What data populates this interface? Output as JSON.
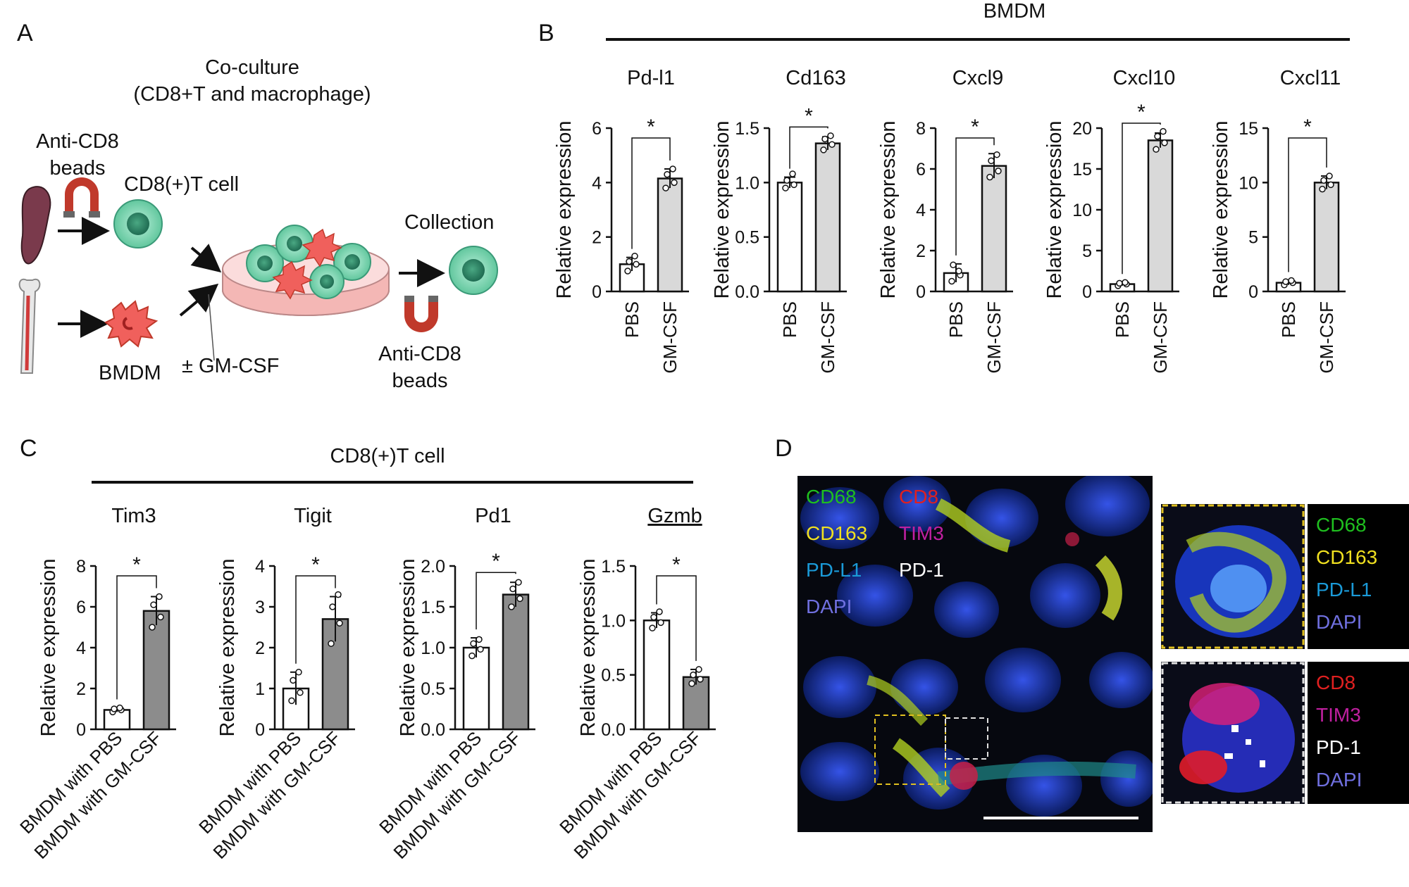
{
  "panels": {
    "a": "A",
    "b": "B",
    "c": "C",
    "d": "D"
  },
  "schematic": {
    "coculture_line1": "Co-culture",
    "coculture_line2": "(CD8+T and macrophage)",
    "anti_cd8_beads_top": "Anti-CD8\nbeads",
    "cd8_cell": "CD8(+)T cell",
    "bmdm": "BMDM",
    "gm_csf": "± GM-CSF",
    "collection": "Collection",
    "anti_cd8_beads_bottom": "Anti-CD8\nbeads",
    "colors": {
      "t_cell": "#7fd8b4",
      "macrophage": "#f0605c",
      "dish": "#f4b7b5",
      "spleen": "#7a3a4c",
      "magnet": "#c0392b"
    }
  },
  "b_group_title": "BMDM",
  "c_group_title": "CD8(+)T cell",
  "chart_data": [
    {
      "type": "bar",
      "title": "Pd-l1",
      "ylabel": "Relative expression",
      "categories": [
        "PBS",
        "GM-CSF"
      ],
      "ylim": [
        0,
        6
      ],
      "yticks": [
        "0",
        "2",
        "4",
        "6"
      ],
      "values": [
        1.0,
        4.15
      ],
      "errors": [
        0.25,
        0.35
      ],
      "points": [
        [
          0.75,
          1.0,
          1.1,
          1.3
        ],
        [
          3.8,
          4.0,
          4.3,
          4.5
        ]
      ],
      "fills": [
        "#ffffff",
        "#d9d9d9"
      ],
      "significance": "*"
    },
    {
      "type": "bar",
      "title": "Cd163",
      "ylabel": "Relative expression",
      "categories": [
        "PBS",
        "GM-CSF"
      ],
      "ylim": [
        0,
        1.5
      ],
      "yticks": [
        "0.0",
        "0.5",
        "1.0",
        "1.5"
      ],
      "values": [
        1.0,
        1.36
      ],
      "errors": [
        0.05,
        0.06
      ],
      "points": [
        [
          0.95,
          0.98,
          1.02,
          1.08
        ],
        [
          1.3,
          1.35,
          1.4,
          1.43
        ]
      ],
      "fills": [
        "#ffffff",
        "#d9d9d9"
      ],
      "significance": "*"
    },
    {
      "type": "bar",
      "title": "Cxcl9",
      "ylabel": "Relative expression",
      "categories": [
        "PBS",
        "GM-CSF"
      ],
      "ylim": [
        0,
        8
      ],
      "yticks": [
        "0",
        "2",
        "4",
        "6",
        "8"
      ],
      "values": [
        0.9,
        6.15
      ],
      "errors": [
        0.45,
        0.6
      ],
      "points": [
        [
          0.5,
          0.8,
          1.3,
          1.0
        ],
        [
          5.6,
          5.9,
          6.4,
          6.7
        ]
      ],
      "fills": [
        "#ffffff",
        "#d9d9d9"
      ],
      "significance": "*"
    },
    {
      "type": "bar",
      "title": "Cxcl10",
      "ylabel": "Relative expression",
      "categories": [
        "PBS",
        "GM-CSF"
      ],
      "ylim": [
        0,
        20
      ],
      "yticks": [
        "0",
        "5",
        "10",
        "15",
        "20"
      ],
      "values": [
        0.9,
        18.5
      ],
      "errors": [
        0.2,
        0.9
      ],
      "points": [
        [
          0.7,
          0.9,
          1.0,
          1.1
        ],
        [
          17.4,
          18.2,
          19.0,
          19.6
        ]
      ],
      "fills": [
        "#ffffff",
        "#d9d9d9"
      ],
      "significance": "*"
    },
    {
      "type": "bar",
      "title": "Cxcl11",
      "ylabel": "Relative expression",
      "categories": [
        "PBS",
        "GM-CSF"
      ],
      "ylim": [
        0,
        15
      ],
      "yticks": [
        "0",
        "5",
        "10",
        "15"
      ],
      "values": [
        0.8,
        10.0
      ],
      "errors": [
        0.2,
        0.6
      ],
      "points": [
        [
          0.6,
          0.8,
          0.9,
          1.0
        ],
        [
          9.4,
          9.8,
          10.2,
          10.6
        ]
      ],
      "fills": [
        "#ffffff",
        "#d9d9d9"
      ],
      "significance": "*"
    },
    {
      "type": "bar",
      "title": "Tim3",
      "ylabel": "Relative expression",
      "categories": [
        "BMDM with PBS",
        "BMDM with GM-CSF"
      ],
      "ylim": [
        0,
        8
      ],
      "yticks": [
        "0",
        "2",
        "4",
        "6",
        "8"
      ],
      "values": [
        0.95,
        5.8
      ],
      "errors": [
        0.1,
        0.7
      ],
      "points": [
        [
          0.85,
          0.95,
          1.0,
          1.05
        ],
        [
          5.0,
          5.5,
          6.1,
          6.5
        ]
      ],
      "fills": [
        "#ffffff",
        "#8c8c8c"
      ],
      "significance": "*"
    },
    {
      "type": "bar",
      "title": "Tigit",
      "ylabel": "Relative expression",
      "categories": [
        "BMDM with PBS",
        "BMDM with GM-CSF"
      ],
      "ylim": [
        0,
        4
      ],
      "yticks": [
        "0",
        "1",
        "2",
        "3",
        "4"
      ],
      "values": [
        1.0,
        2.7
      ],
      "errors": [
        0.4,
        0.55
      ],
      "points": [
        [
          0.7,
          0.9,
          1.2,
          1.4
        ],
        [
          2.1,
          2.6,
          3.0,
          3.3
        ]
      ],
      "fills": [
        "#ffffff",
        "#8c8c8c"
      ],
      "significance": "*"
    },
    {
      "type": "bar",
      "title": "Pd1",
      "ylabel": "Relative expression",
      "categories": [
        "BMDM with PBS",
        "BMDM with GM-CSF"
      ],
      "ylim": [
        0,
        2.0
      ],
      "yticks": [
        "0.0",
        "0.5",
        "1.0",
        "1.5",
        "2.0"
      ],
      "values": [
        1.0,
        1.65
      ],
      "errors": [
        0.12,
        0.15
      ],
      "points": [
        [
          0.9,
          0.98,
          1.05,
          1.1
        ],
        [
          1.5,
          1.6,
          1.72,
          1.8
        ]
      ],
      "fills": [
        "#ffffff",
        "#8c8c8c"
      ],
      "significance": "*"
    },
    {
      "type": "bar",
      "title": "Gzmb",
      "ylabel": "Relative expression",
      "categories": [
        "BMDM with PBS",
        "BMDM with GM-CSF"
      ],
      "ylim": [
        0,
        1.5
      ],
      "yticks": [
        "0.0",
        "0.5",
        "1.0",
        "1.5"
      ],
      "values": [
        1.0,
        0.48
      ],
      "errors": [
        0.07,
        0.07
      ],
      "points": [
        [
          0.93,
          0.98,
          1.03,
          1.08
        ],
        [
          0.42,
          0.46,
          0.5,
          0.55
        ]
      ],
      "fills": [
        "#ffffff",
        "#8c8c8c"
      ],
      "significance": "*"
    }
  ],
  "microscopy": {
    "main_labels": [
      {
        "text": "CD68",
        "color": "#1fbf1f"
      },
      {
        "text": "CD8",
        "color": "#e02020"
      },
      {
        "text": "CD163",
        "color": "#f0e020"
      },
      {
        "text": "TIM3",
        "color": "#c020a0"
      },
      {
        "text": "PD-L1",
        "color": "#1a9ad8"
      },
      {
        "text": "PD-1",
        "color": "#ffffff"
      },
      {
        "text": "DAPI",
        "color": "#7070e0"
      }
    ],
    "legend_top": [
      {
        "text": "CD68",
        "color": "#1fbf1f"
      },
      {
        "text": "CD163",
        "color": "#f0e020"
      },
      {
        "text": "PD-L1",
        "color": "#1a9ad8"
      },
      {
        "text": "DAPI",
        "color": "#7070e0"
      }
    ],
    "legend_bottom": [
      {
        "text": "CD8",
        "color": "#e02020"
      },
      {
        "text": "TIM3",
        "color": "#c020a0"
      },
      {
        "text": "PD-1",
        "color": "#ffffff"
      },
      {
        "text": "DAPI",
        "color": "#7070e0"
      }
    ]
  }
}
